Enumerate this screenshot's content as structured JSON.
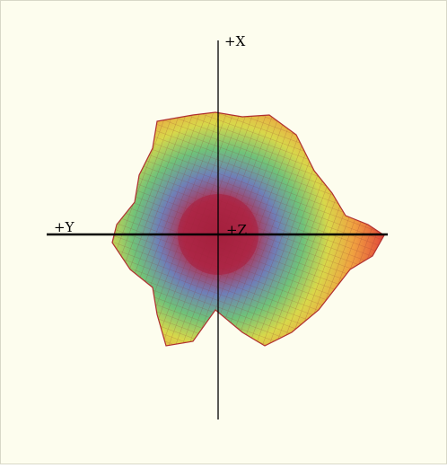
{
  "axes": {
    "x_label": "+X",
    "y_label": "+Y",
    "z_label": "+Z"
  }
}
